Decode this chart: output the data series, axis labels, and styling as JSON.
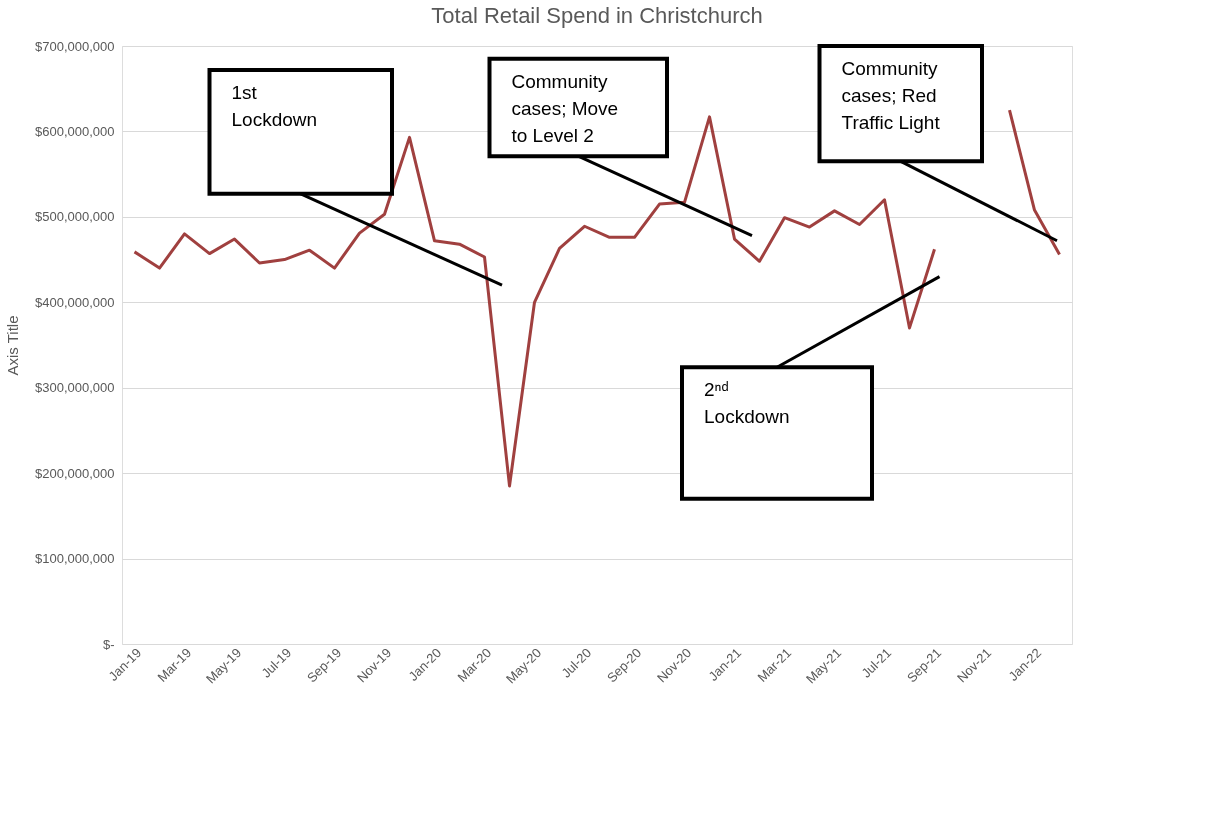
{
  "chart_data": {
    "type": "line",
    "title": "Total Retail Spend in Christchurch",
    "ylabel": "Axis Title",
    "categories": [
      "Jan-19",
      null,
      "Mar-19",
      null,
      "May-19",
      null,
      "Jul-19",
      null,
      "Sep-19",
      null,
      "Nov-19",
      null,
      "Jan-20",
      null,
      "Mar-20",
      null,
      "May-20",
      null,
      "Jul-20",
      null,
      "Sep-20",
      null,
      "Nov-20",
      null,
      "Jan-21",
      null,
      "Mar-21",
      null,
      "May-21",
      null,
      "Jul-21",
      null,
      "Sep-21",
      null,
      "Nov-21",
      null,
      "Jan-22",
      null
    ],
    "series": [
      {
        "color": "#a0403f",
        "values": [
          459000000,
          440000000,
          480000000,
          457000000,
          474000000,
          446000000,
          450000000,
          461000000,
          440000000,
          481000000,
          503000000,
          593000000,
          472000000,
          468000000,
          453000000,
          185000000,
          400000000,
          463000000,
          489000000,
          476000000,
          476000000,
          515000000,
          517000000,
          617000000,
          474000000,
          448000000,
          499000000,
          488000000,
          507000000,
          491000000,
          520000000,
          370000000,
          462000000,
          null,
          null,
          625000000,
          508000000,
          456000000
        ]
      }
    ],
    "ylim": [
      0,
      700000000
    ],
    "yticks": [
      {
        "value": 0,
        "label": "$-"
      },
      {
        "value": 100000000,
        "label": "$100,000,000"
      },
      {
        "value": 200000000,
        "label": "$200,000,000"
      },
      {
        "value": 300000000,
        "label": "$300,000,000"
      },
      {
        "value": 400000000,
        "label": "$400,000,000"
      },
      {
        "value": 500000000,
        "label": "$500,000,000"
      },
      {
        "value": 600000000,
        "label": "$600,000,000"
      },
      {
        "value": 700000000,
        "label": "$700,000,000"
      }
    ],
    "grid": "y",
    "legend": false,
    "marker": "none",
    "line_style": "solid",
    "annotations": [
      "1st Lockdown",
      "Community cases; Move to Level 2",
      "Community cases; Red Traffic Light",
      "2ⁿᵈ Lockdown"
    ]
  }
}
